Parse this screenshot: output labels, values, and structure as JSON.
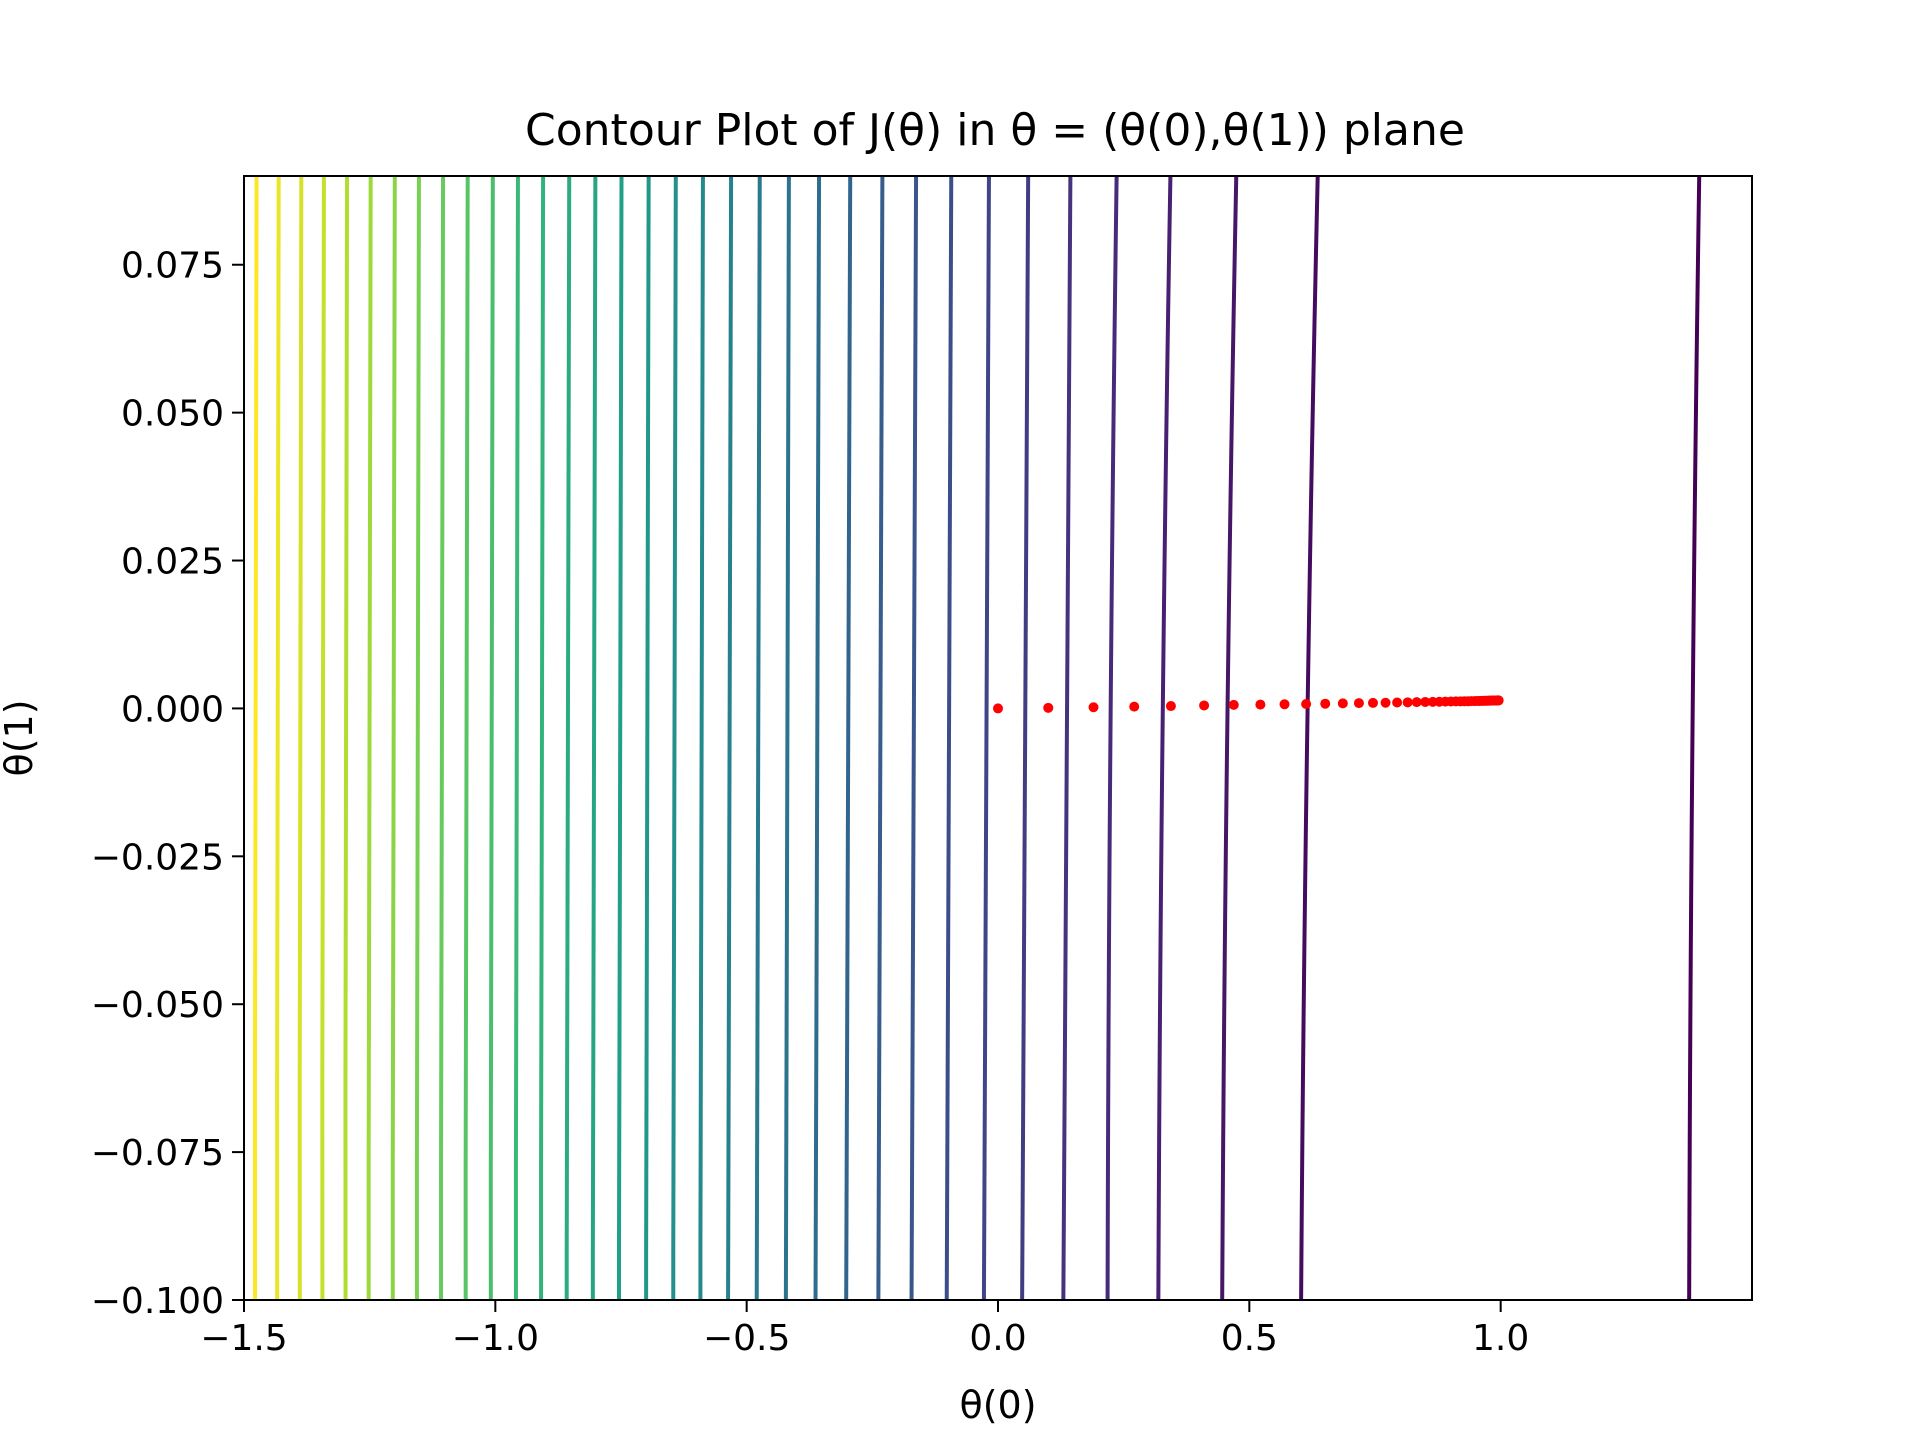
{
  "chart_data": {
    "type": "contour",
    "title": "Contour Plot of J(θ) in θ = (θ(0),θ(1)) plane",
    "xlabel": "θ(0)",
    "ylabel": "θ(1)",
    "xlim": [
      -1.5,
      1.5
    ],
    "ylim": [
      -0.1,
      0.09
    ],
    "xticks": [
      -1.5,
      -1.0,
      -0.5,
      0.0,
      0.5,
      1.0
    ],
    "xtick_labels": [
      "−1.5",
      "−1.0",
      "−0.5",
      "0.0",
      "0.5",
      "1.0"
    ],
    "yticks": [
      -0.1,
      -0.075,
      -0.05,
      -0.025,
      0.0,
      0.025,
      0.05,
      0.075
    ],
    "ytick_labels": [
      "−0.100",
      "−0.075",
      "−0.050",
      "−0.025",
      "0.000",
      "0.025",
      "0.050",
      "0.075"
    ],
    "grid": false,
    "colormap": "viridis",
    "contour_lines": [
      {
        "x_at_top": -1.475,
        "x_at_bottom": -1.478
      },
      {
        "x_at_top": -1.431,
        "x_at_bottom": -1.434
      },
      {
        "x_at_top": -1.386,
        "x_at_bottom": -1.389
      },
      {
        "x_at_top": -1.341,
        "x_at_bottom": -1.344
      },
      {
        "x_at_top": -1.295,
        "x_at_bottom": -1.298
      },
      {
        "x_at_top": -1.248,
        "x_at_bottom": -1.252
      },
      {
        "x_at_top": -1.2,
        "x_at_bottom": -1.204
      },
      {
        "x_at_top": -1.152,
        "x_at_bottom": -1.156
      },
      {
        "x_at_top": -1.104,
        "x_at_bottom": -1.108
      },
      {
        "x_at_top": -1.055,
        "x_at_bottom": -1.059
      },
      {
        "x_at_top": -1.005,
        "x_at_bottom": -1.009
      },
      {
        "x_at_top": -0.955,
        "x_at_bottom": -0.959
      },
      {
        "x_at_top": -0.905,
        "x_at_bottom": -0.909
      },
      {
        "x_at_top": -0.853,
        "x_at_bottom": -0.858
      },
      {
        "x_at_top": -0.801,
        "x_at_bottom": -0.806
      },
      {
        "x_at_top": -0.749,
        "x_at_bottom": -0.754
      },
      {
        "x_at_top": -0.695,
        "x_at_bottom": -0.7
      },
      {
        "x_at_top": -0.641,
        "x_at_bottom": -0.646
      },
      {
        "x_at_top": -0.587,
        "x_at_bottom": -0.592
      },
      {
        "x_at_top": -0.531,
        "x_at_bottom": -0.537
      },
      {
        "x_at_top": -0.474,
        "x_at_bottom": -0.48
      },
      {
        "x_at_top": -0.416,
        "x_at_bottom": -0.422
      },
      {
        "x_at_top": -0.356,
        "x_at_bottom": -0.363
      },
      {
        "x_at_top": -0.294,
        "x_at_bottom": -0.302
      },
      {
        "x_at_top": -0.23,
        "x_at_bottom": -0.238
      },
      {
        "x_at_top": -0.163,
        "x_at_bottom": -0.172
      },
      {
        "x_at_top": -0.093,
        "x_at_bottom": -0.102
      },
      {
        "x_at_top": -0.018,
        "x_at_bottom": -0.028
      },
      {
        "x_at_top": 0.06,
        "x_at_bottom": 0.048
      },
      {
        "x_at_top": 0.144,
        "x_at_bottom": 0.13
      },
      {
        "x_at_top": 0.236,
        "x_at_bottom": 0.218
      },
      {
        "x_at_top": 0.343,
        "x_at_bottom": 0.319
      },
      {
        "x_at_top": 0.474,
        "x_at_bottom": 0.446
      },
      {
        "x_at_top": 0.636,
        "x_at_bottom": 0.603
      },
      {
        "x_at_top": 1.395,
        "x_at_bottom": 1.375
      }
    ],
    "descent_path": {
      "color": "#ff0000",
      "x": [
        0.0,
        0.1,
        0.19,
        0.271,
        0.344,
        0.41,
        0.469,
        0.522,
        0.57,
        0.613,
        0.651,
        0.686,
        0.718,
        0.746,
        0.771,
        0.794,
        0.815,
        0.833,
        0.85,
        0.865,
        0.878,
        0.89,
        0.901,
        0.911,
        0.92,
        0.928,
        0.935,
        0.941,
        0.947,
        0.952,
        0.957,
        0.961,
        0.965,
        0.968,
        0.971,
        0.974,
        0.977,
        0.979,
        0.981,
        0.983,
        0.985,
        0.987,
        0.988,
        0.99,
        0.991,
        0.992,
        0.993,
        0.994,
        0.995,
        0.996
      ],
      "y": [
        0.0,
        0.0001,
        0.0002,
        0.0003,
        0.0004,
        0.0005,
        0.0006,
        0.00065,
        0.0007,
        0.00075,
        0.0008,
        0.00085,
        0.0009,
        0.00093,
        0.00096,
        0.001,
        0.00103,
        0.00106,
        0.00109,
        0.00111,
        0.00113,
        0.00115,
        0.00117,
        0.00119,
        0.0012,
        0.00121,
        0.00122,
        0.00123,
        0.00124,
        0.00125,
        0.00126,
        0.00127,
        0.00128,
        0.00129,
        0.0013,
        0.0013,
        0.00131,
        0.00131,
        0.00132,
        0.00132,
        0.00133,
        0.00133,
        0.00133,
        0.00134,
        0.00134,
        0.00134,
        0.00135,
        0.00135,
        0.00135,
        0.00135
      ]
    }
  }
}
